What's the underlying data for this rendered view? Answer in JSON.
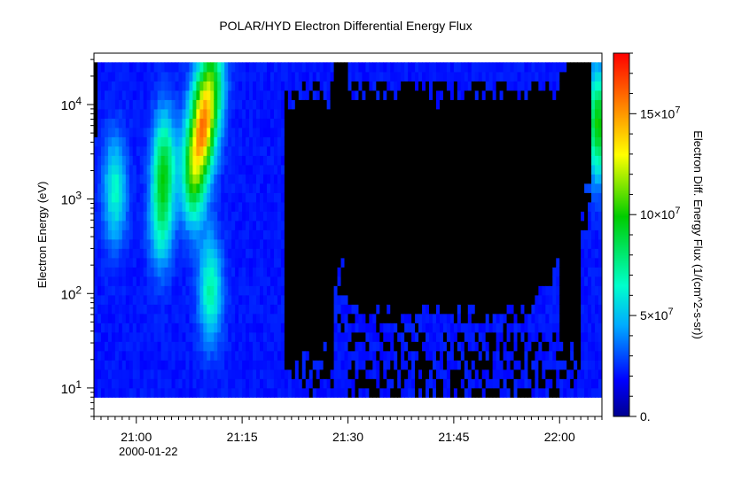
{
  "chart_data": {
    "type": "heatmap",
    "title": "POLAR/HYD  Electron Differential Energy Flux",
    "xlabel": "",
    "ylabel": "Electron Energy (eV)",
    "x_date_label": "2000-01-22",
    "x_tick_labels": [
      "21:00",
      "21:15",
      "21:30",
      "21:45",
      "22:00"
    ],
    "x_tick_minutes": [
      0,
      15,
      30,
      45,
      60
    ],
    "xlim_minutes": [
      -6,
      66
    ],
    "y_scale": "log",
    "y_tick_labels": [
      {
        "base": "10",
        "exp": "1"
      },
      {
        "base": "10",
        "exp": "2"
      },
      {
        "base": "10",
        "exp": "3"
      },
      {
        "base": "10",
        "exp": "4"
      }
    ],
    "y_tick_values": [
      10,
      100,
      1000,
      10000
    ],
    "ylim": [
      5,
      35000
    ],
    "data_energy_range": [
      8,
      28000
    ],
    "colorbar": {
      "label": "Electron Diff. Energy Flux (1/(cm^2-s-sr))",
      "range": [
        0,
        180000000
      ],
      "tick_values": [
        0,
        50000000,
        100000000,
        150000000
      ],
      "tick_labels": [
        {
          "base": "0.",
          "exp": ""
        },
        {
          "base": "5×10",
          "exp": "7"
        },
        {
          "base": "10×10",
          "exp": "7"
        },
        {
          "base": "15×10",
          "exp": "7"
        }
      ],
      "colors": [
        "#00008f",
        "#0000ff",
        "#00aaff",
        "#00ffcc",
        "#00cc00",
        "#ffff00",
        "#ff8800",
        "#ff0000"
      ]
    },
    "no_data_color": "#000000",
    "features": [
      {
        "time_min": 9.5,
        "log_energy": 3.8,
        "flux": 110000000
      },
      {
        "time_min": 8.0,
        "log_energy": 3.3,
        "flux": 80000000
      },
      {
        "time_min": 4.0,
        "log_energy": 3.4,
        "flux": 60000000
      },
      {
        "time_min": 3.5,
        "log_energy": 2.8,
        "flux": 45000000
      },
      {
        "time_min": -3.0,
        "log_energy": 3.1,
        "flux": 45000000
      },
      {
        "time_min": 10.5,
        "log_energy": 2.05,
        "flux": 50000000
      },
      {
        "time_min": 11.0,
        "log_energy": 4.25,
        "flux": 60000000
      },
      {
        "time_min": 65.5,
        "log_energy": 3.8,
        "flux": 80000000
      }
    ],
    "blackout_regions": [
      {
        "t0": 21,
        "t1": 28,
        "upper_log_energy_edge": 3.9
      },
      {
        "t0": 30,
        "t1": 60,
        "upper_log_energy_edge": 4.0,
        "lower_log_energy_edge": 1.6
      },
      {
        "t0": 60,
        "t1": 63,
        "upper_log_energy_edge": 4.3
      }
    ]
  }
}
